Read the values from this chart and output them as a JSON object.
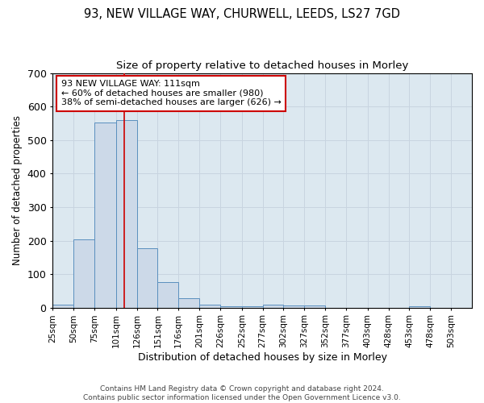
{
  "title_line1": "93, NEW VILLAGE WAY, CHURWELL, LEEDS, LS27 7GD",
  "title_line2": "Size of property relative to detached houses in Morley",
  "xlabel": "Distribution of detached houses by size in Morley",
  "ylabel": "Number of detached properties",
  "bin_edges": [
    25,
    50,
    75,
    101,
    126,
    151,
    176,
    201,
    226,
    252,
    277,
    302,
    327,
    352,
    377,
    403,
    428,
    453,
    478,
    503,
    528
  ],
  "bar_heights": [
    10,
    204,
    552,
    560,
    178,
    76,
    28,
    10,
    5,
    5,
    8,
    7,
    6,
    0,
    0,
    0,
    0,
    5,
    0,
    0
  ],
  "ylim": [
    0,
    700
  ],
  "bar_color": "#ccd9e8",
  "bar_edge_color": "#5a8fbe",
  "grid_color": "#c8d4e0",
  "bg_color": "#dce8f0",
  "fig_bg_color": "#ffffff",
  "property_line_x": 111,
  "annotation_text_line1": "93 NEW VILLAGE WAY: 111sqm",
  "annotation_text_line2": "← 60% of detached houses are smaller (980)",
  "annotation_text_line3": "38% of semi-detached houses are larger (626) →",
  "annotation_box_color": "#ffffff",
  "annotation_box_edge_color": "#cc0000",
  "red_line_color": "#cc0000",
  "footer_line1": "Contains HM Land Registry data © Crown copyright and database right 2024.",
  "footer_line2": "Contains public sector information licensed under the Open Government Licence v3.0.",
  "title_fontsize": 10.5,
  "subtitle_fontsize": 9.5,
  "tick_label_fontsize": 7.5,
  "ylabel_fontsize": 8.5,
  "xlabel_fontsize": 9,
  "footer_fontsize": 6.5
}
